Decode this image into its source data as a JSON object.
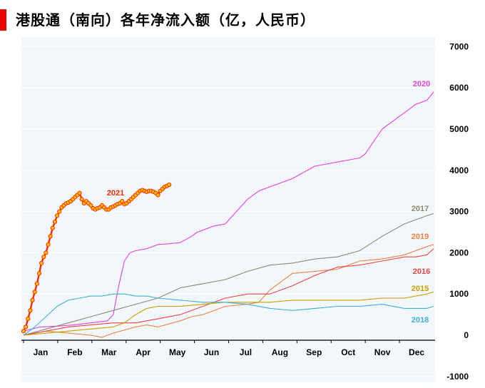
{
  "title": "港股通（南向）各年净流入额（亿，人民币）",
  "colors": {
    "title_bar": "#e60000",
    "plot_bg": "#f2f7fc"
  },
  "chart_data": {
    "type": "line",
    "title": "港股通（南向）各年净流入额（亿，人民币）",
    "xlabel": "",
    "ylabel": "",
    "x_unit": "day_of_year",
    "xlim": [
      0,
      366
    ],
    "ylim": [
      -1000,
      7000
    ],
    "y_ticks": [
      7000,
      6000,
      5000,
      4000,
      3000,
      2000,
      1000,
      0,
      -1000
    ],
    "months": [
      "Jan",
      "Feb",
      "Mar",
      "Apr",
      "May",
      "Jun",
      "Jul",
      "Aug",
      "Sep",
      "Oct",
      "Nov",
      "Dec"
    ],
    "grid": true,
    "y_axis_position": "right",
    "series": [
      {
        "name": "2020",
        "color": "#e83fe0",
        "x": [
          0,
          15,
          30,
          45,
          60,
          75,
          80,
          85,
          90,
          95,
          100,
          110,
          120,
          130,
          140,
          150,
          155,
          160,
          170,
          180,
          190,
          200,
          210,
          220,
          240,
          260,
          280,
          300,
          305,
          310,
          320,
          330,
          335,
          340,
          350,
          360,
          366
        ],
        "y": [
          100,
          200,
          220,
          250,
          300,
          350,
          500,
          1200,
          1800,
          2000,
          2050,
          2100,
          2200,
          2220,
          2250,
          2400,
          2500,
          2550,
          2650,
          2700,
          3000,
          3300,
          3500,
          3600,
          3800,
          4100,
          4200,
          4300,
          4400,
          4600,
          5000,
          5200,
          5300,
          5400,
          5600,
          5700,
          5900
        ]
      },
      {
        "name": "2017",
        "color": "#8a8a6c",
        "x": [
          0,
          20,
          40,
          60,
          80,
          100,
          120,
          140,
          160,
          180,
          200,
          220,
          240,
          260,
          280,
          300,
          320,
          340,
          360,
          366
        ],
        "y": [
          0,
          150,
          300,
          450,
          600,
          750,
          900,
          1150,
          1250,
          1350,
          1550,
          1700,
          1750,
          1850,
          1900,
          2050,
          2400,
          2700,
          2900,
          2950
        ]
      },
      {
        "name": "2019",
        "color": "#f08040",
        "x": [
          0,
          20,
          40,
          60,
          70,
          80,
          100,
          110,
          120,
          140,
          150,
          160,
          180,
          200,
          210,
          220,
          240,
          260,
          280,
          300,
          320,
          340,
          360,
          366
        ],
        "y": [
          0,
          100,
          50,
          0,
          -50,
          50,
          200,
          250,
          200,
          350,
          450,
          500,
          700,
          750,
          800,
          1100,
          1500,
          1550,
          1600,
          1800,
          1850,
          1950,
          2150,
          2200
        ]
      },
      {
        "name": "2016",
        "color": "#e84545",
        "x": [
          0,
          20,
          40,
          60,
          80,
          100,
          120,
          140,
          160,
          180,
          200,
          220,
          240,
          260,
          280,
          300,
          320,
          340,
          350,
          360,
          366
        ],
        "y": [
          0,
          100,
          200,
          250,
          300,
          300,
          400,
          500,
          700,
          900,
          1000,
          1000,
          1200,
          1450,
          1650,
          1700,
          1800,
          1900,
          1900,
          1950,
          2100
        ]
      },
      {
        "name": "2015",
        "color": "#c8a000",
        "x": [
          0,
          20,
          40,
          60,
          80,
          90,
          100,
          110,
          120,
          140,
          160,
          180,
          200,
          220,
          240,
          260,
          280,
          300,
          320,
          340,
          360,
          366
        ],
        "y": [
          0,
          50,
          100,
          150,
          200,
          300,
          500,
          650,
          700,
          700,
          750,
          800,
          800,
          800,
          850,
          850,
          850,
          850,
          900,
          900,
          1000,
          1050
        ]
      },
      {
        "name": "2018",
        "color": "#3fb0d0",
        "x": [
          0,
          10,
          20,
          30,
          40,
          50,
          60,
          70,
          80,
          90,
          100,
          110,
          120,
          140,
          160,
          180,
          200,
          220,
          240,
          260,
          280,
          300,
          320,
          340,
          360,
          366
        ],
        "y": [
          0,
          200,
          450,
          700,
          850,
          900,
          950,
          950,
          1000,
          1000,
          950,
          950,
          900,
          850,
          800,
          800,
          750,
          650,
          600,
          650,
          700,
          700,
          750,
          650,
          650,
          700
        ]
      },
      {
        "name": "2021",
        "color": "#ff2a00",
        "marker": "#ffc000",
        "x": [
          0,
          2,
          4,
          6,
          8,
          10,
          12,
          14,
          16,
          18,
          20,
          22,
          24,
          26,
          28,
          30,
          32,
          34,
          36,
          38,
          40,
          42,
          44,
          46,
          48,
          50,
          52,
          54,
          56,
          58,
          60,
          62,
          64,
          66,
          68,
          70,
          72,
          74,
          76,
          78,
          80,
          82,
          84,
          86,
          88,
          90,
          92,
          94,
          96,
          98,
          100,
          102,
          104,
          106,
          108,
          110,
          112,
          114,
          116,
          118,
          120,
          122,
          124,
          126,
          128,
          130
        ],
        "y": [
          100,
          200,
          400,
          600,
          850,
          1050,
          1250,
          1500,
          1750,
          1900,
          2000,
          2200,
          2400,
          2600,
          2750,
          2900,
          3000,
          3100,
          3150,
          3200,
          3220,
          3250,
          3300,
          3350,
          3400,
          3450,
          3300,
          3200,
          3250,
          3200,
          3150,
          3080,
          3050,
          3080,
          3100,
          3150,
          3100,
          3050,
          3050,
          3100,
          3120,
          3150,
          3180,
          3200,
          3250,
          3180,
          3200,
          3250,
          3300,
          3350,
          3400,
          3450,
          3500,
          3520,
          3500,
          3480,
          3500,
          3500,
          3480,
          3450,
          3400,
          3500,
          3550,
          3600,
          3620,
          3650
        ]
      }
    ],
    "labels": [
      "2021",
      "2020",
      "2017",
      "2019",
      "2016",
      "2015",
      "2018"
    ]
  }
}
